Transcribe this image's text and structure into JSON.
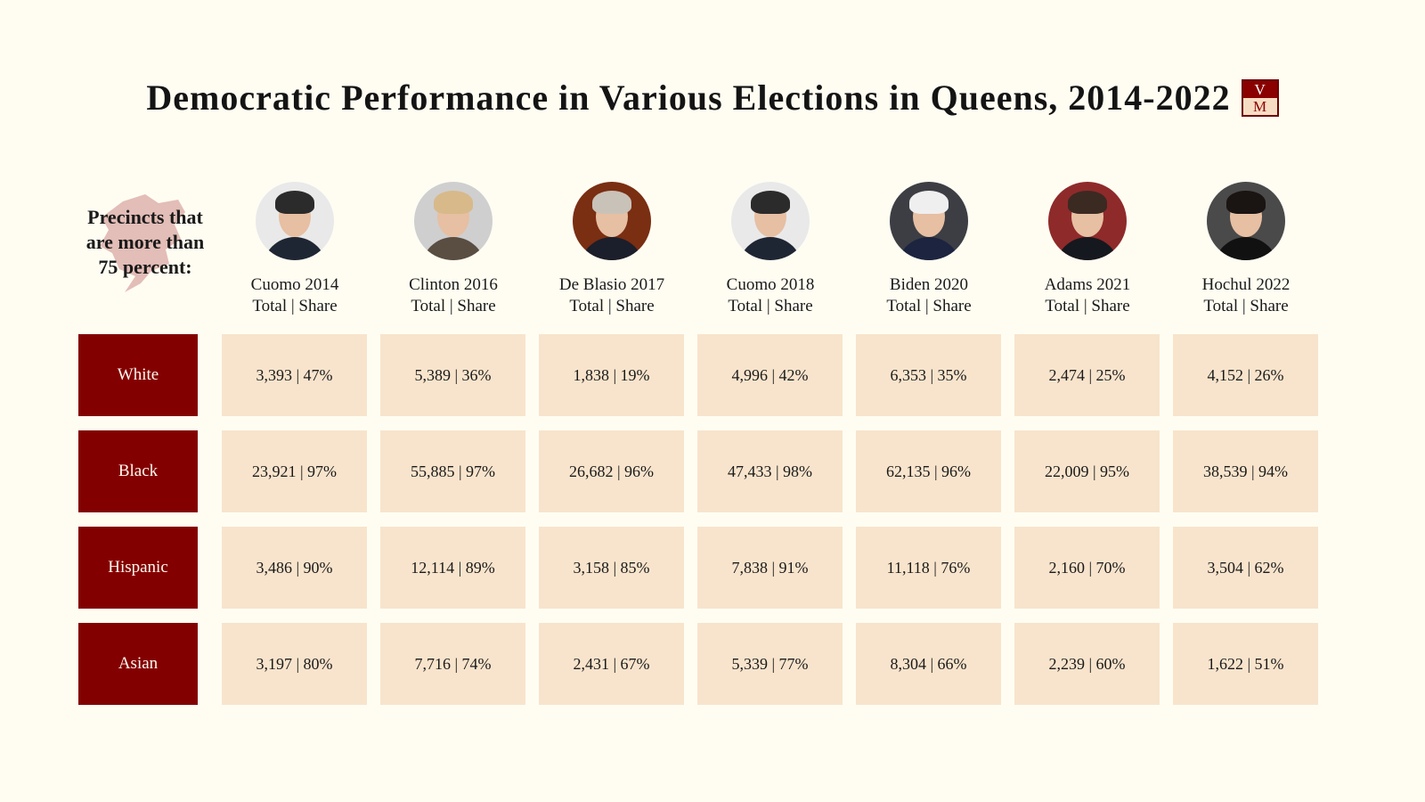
{
  "title": "Democratic Performance in Various Elections in Queens, 2014-2022",
  "logo": {
    "top": "V",
    "bottom": "M"
  },
  "precinct_label": [
    "Precincts that",
    "are more than",
    "75 percent:"
  ],
  "colors": {
    "row_label_bg": "#830000",
    "cell_bg": "#f8e4cc",
    "background": "#fffdf2",
    "map_shape": "#d9a7a3"
  },
  "chart_data": {
    "type": "table",
    "subheader": "Total | Share",
    "columns": [
      "Cuomo 2014",
      "Clinton 2016",
      "De Blasio 2017",
      "Cuomo 2018",
      "Biden 2020",
      "Adams 2021",
      "Hochul 2022"
    ],
    "rows": [
      {
        "label": "White",
        "values": [
          "3,393 | 47%",
          "5,389 | 36%",
          "1,838 | 19%",
          "4,996 | 42%",
          "6,353 | 35%",
          "2,474 | 25%",
          "4,152 | 26%"
        ]
      },
      {
        "label": "Black",
        "values": [
          "23,921 | 97%",
          "55,885 | 97%",
          "26,682 | 96%",
          "47,433 | 98%",
          "62,135 | 96%",
          "22,009 | 95%",
          "38,539 | 94%"
        ]
      },
      {
        "label": "Hispanic",
        "values": [
          "3,486 | 90%",
          "12,114 | 89%",
          "3,158 | 85%",
          "7,838 | 91%",
          "11,118 | 76%",
          "2,160 | 70%",
          "3,504 | 62%"
        ]
      },
      {
        "label": "Asian",
        "values": [
          "3,197 | 80%",
          "7,716 | 74%",
          "2,431 | 67%",
          "5,339 | 77%",
          "8,304 | 66%",
          "2,239 | 60%",
          "1,622 | 51%"
        ]
      }
    ]
  }
}
